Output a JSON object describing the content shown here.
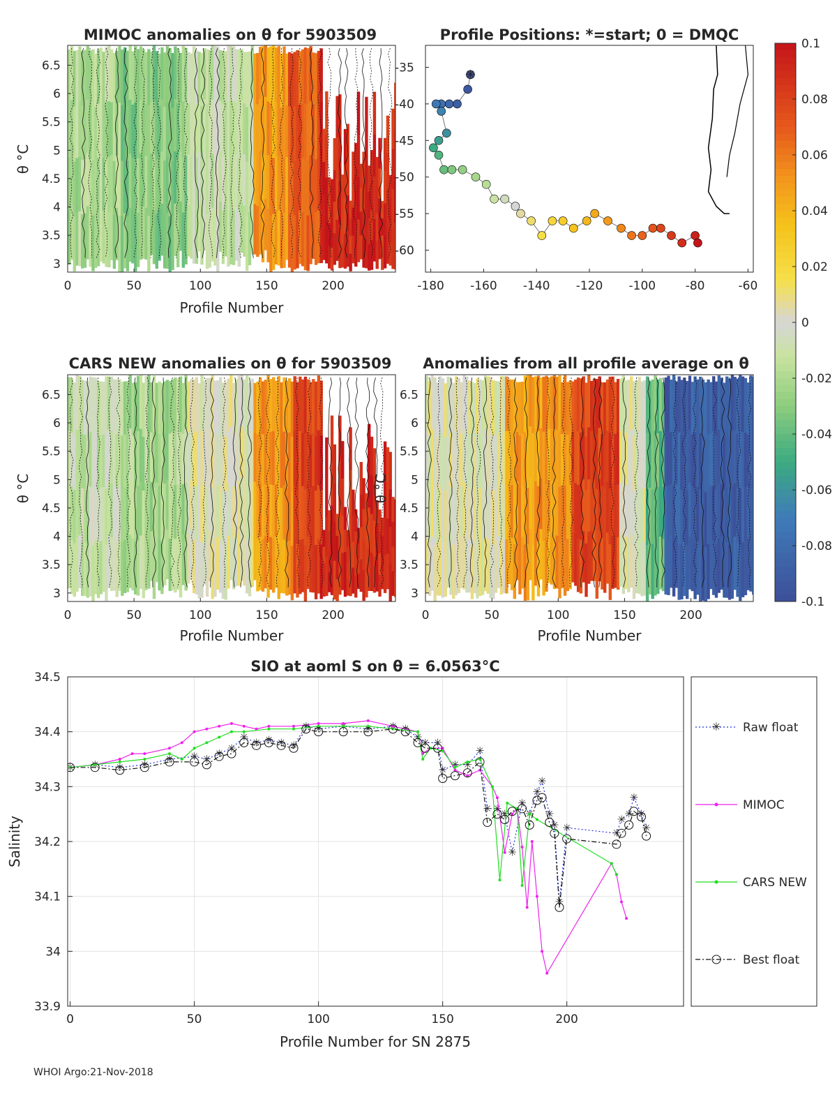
{
  "panels": {
    "mimoc": {
      "title": "MIMOC anomalies on θ  for 5903509",
      "xlabel": "Profile Number",
      "ylabel": "θ °C",
      "xticks": [
        "0",
        "50",
        "100",
        "150",
        "200"
      ],
      "yticks": [
        "6.5",
        "6",
        "5.5",
        "5",
        "4.5",
        "4",
        "3.5",
        "3"
      ]
    },
    "positions": {
      "title": "Profile Positions: *=start; 0 = DMQC",
      "xticks": [
        "-180",
        "-160",
        "-140",
        "-120",
        "-100",
        "-80",
        "-60"
      ],
      "yticks": [
        "-35",
        "-40",
        "-45",
        "-50",
        "-55",
        "-60"
      ]
    },
    "cars": {
      "title": "CARS NEW anomalies on θ for 5903509",
      "xlabel": "Profile Number",
      "ylabel": "θ °C",
      "xticks": [
        "0",
        "50",
        "100",
        "150",
        "200"
      ],
      "yticks": [
        "6.5",
        "6",
        "5.5",
        "5",
        "4.5",
        "4",
        "3.5",
        "3"
      ]
    },
    "allavg": {
      "title": "Anomalies from all profile average on θ",
      "xlabel": "Profile Number",
      "ylabel": "θ °C",
      "xticks": [
        "0",
        "50",
        "100",
        "150",
        "200"
      ],
      "yticks": [
        "6.5",
        "6",
        "5.5",
        "5",
        "4.5",
        "4",
        "3.5",
        "3"
      ]
    }
  },
  "colorbar": {
    "ticks": [
      "0.1",
      "0.08",
      "0.06",
      "0.04",
      "0.02",
      "0",
      "-0.02",
      "-0.04",
      "-0.06",
      "-0.08",
      "-0.1"
    ],
    "colors": [
      "#cc1a1a",
      "#e8581c",
      "#f39a1c",
      "#f6d31d",
      "#d8d8d8",
      "#a8d98a",
      "#3cab80",
      "#3f5a9c"
    ]
  },
  "bottom": {
    "title": "SIO at aoml S on θ = 6.0563°C",
    "xlabel": "Profile Number for SN 2875",
    "ylabel": "Salinity",
    "legend": [
      "Raw float",
      "MIMOC",
      "CARS NEW",
      "Best float"
    ]
  },
  "chart_data": [
    {
      "type": "heatmap",
      "title": "MIMOC anomalies on θ  for 5903509",
      "xlabel": "Profile Number",
      "ylabel": "θ °C",
      "xlim": [
        0,
        247
      ],
      "ylim": [
        2.85,
        6.85
      ],
      "color_range": [
        -0.1,
        0.1
      ],
      "segments": [
        {
          "x": [
            0,
            40
          ],
          "anomaly": -0.02
        },
        {
          "x": [
            40,
            90
          ],
          "anomaly": -0.03
        },
        {
          "x": [
            90,
            140
          ],
          "anomaly": -0.01
        },
        {
          "x": [
            140,
            165
          ],
          "anomaly": 0.05
        },
        {
          "x": [
            165,
            190
          ],
          "anomaly": 0.07
        },
        {
          "x": [
            190,
            247
          ],
          "anomaly": 0.09
        }
      ]
    },
    {
      "type": "scatter",
      "title": "Profile Positions: *=start; 0 = DMQC",
      "xlim": [
        -182,
        -58
      ],
      "ylim": [
        -63,
        -32
      ],
      "x": [
        -165,
        -166,
        -170,
        -173,
        -176,
        -178,
        -176,
        -174,
        -177,
        -179,
        -177,
        -175,
        -172,
        -168,
        -163,
        -159,
        -156,
        -152,
        -148,
        -146,
        -142,
        -138,
        -134,
        -130,
        -126,
        -121,
        -118,
        -113,
        -108,
        -104,
        -100,
        -96,
        -93,
        -89,
        -85,
        -80,
        -79
      ],
      "y": [
        -36,
        -38,
        -40,
        -40,
        -40,
        -40,
        -41,
        -44,
        -45,
        -46,
        -47,
        -49,
        -49,
        -49,
        -50,
        -51,
        -53,
        -53,
        -54,
        -55,
        -56,
        -58,
        -56,
        -56,
        -57,
        -56,
        -55,
        -56,
        -57,
        -58,
        -58,
        -57,
        -57,
        -58,
        -59,
        -58,
        -59
      ],
      "color_by": "profile number"
    },
    {
      "type": "heatmap",
      "title": "CARS NEW anomalies on θ for 5903509",
      "xlabel": "Profile Number",
      "ylabel": "θ °C",
      "xlim": [
        0,
        247
      ],
      "ylim": [
        2.85,
        6.85
      ],
      "color_range": [
        -0.1,
        0.1
      ],
      "segments": [
        {
          "x": [
            0,
            40
          ],
          "anomaly": -0.01
        },
        {
          "x": [
            40,
            90
          ],
          "anomaly": -0.02
        },
        {
          "x": [
            90,
            140
          ],
          "anomaly": 0.0
        },
        {
          "x": [
            140,
            170
          ],
          "anomaly": 0.05
        },
        {
          "x": [
            170,
            190
          ],
          "anomaly": 0.08
        },
        {
          "x": [
            190,
            247
          ],
          "anomaly": 0.09
        }
      ]
    },
    {
      "type": "heatmap",
      "title": "Anomalies from all profile average on θ",
      "xlabel": "Profile Number",
      "ylabel": "θ °C",
      "xlim": [
        0,
        247
      ],
      "ylim": [
        2.85,
        6.85
      ],
      "color_range": [
        -0.1,
        0.1
      ],
      "segments": [
        {
          "x": [
            0,
            60
          ],
          "anomaly": 0.0
        },
        {
          "x": [
            60,
            110
          ],
          "anomaly": 0.05
        },
        {
          "x": [
            110,
            145
          ],
          "anomaly": 0.08
        },
        {
          "x": [
            145,
            165
          ],
          "anomaly": 0.0
        },
        {
          "x": [
            165,
            180
          ],
          "anomaly": -0.04
        },
        {
          "x": [
            180,
            247
          ],
          "anomaly": -0.09
        }
      ]
    },
    {
      "type": "line",
      "title": "SIO at aoml S on θ = 6.0563°C",
      "xlabel": "Profile Number for SN 2875",
      "ylabel": "Salinity",
      "xlim": [
        -1,
        247
      ],
      "ylim": [
        33.9,
        34.5
      ],
      "xticks": [
        0,
        50,
        100,
        150,
        200
      ],
      "yticks": [
        33.9,
        34.0,
        34.1,
        34.2,
        34.3,
        34.4,
        34.5
      ],
      "series": [
        {
          "name": "Raw float",
          "x": [
            0,
            10,
            20,
            30,
            40,
            50,
            55,
            60,
            65,
            70,
            75,
            80,
            85,
            90,
            95,
            100,
            110,
            120,
            130,
            135,
            140,
            143,
            148,
            150,
            155,
            160,
            165,
            168,
            172,
            175,
            178,
            182,
            185,
            188,
            190,
            193,
            195,
            197,
            200,
            220,
            222,
            225,
            227,
            230,
            232
          ],
          "y": [
            34.335,
            34.34,
            34.335,
            34.34,
            34.35,
            34.355,
            34.35,
            34.36,
            34.37,
            34.39,
            34.38,
            34.385,
            34.38,
            34.375,
            34.41,
            34.405,
            34.41,
            34.405,
            34.41,
            34.405,
            34.39,
            34.38,
            34.38,
            34.33,
            34.34,
            34.34,
            34.365,
            34.26,
            34.26,
            34.25,
            34.18,
            34.27,
            34.25,
            34.29,
            34.31,
            34.25,
            34.23,
            34.09,
            34.225,
            34.215,
            34.24,
            34.25,
            34.28,
            34.25,
            34.225
          ]
        },
        {
          "name": "MIMOC",
          "x": [
            0,
            10,
            20,
            25,
            30,
            40,
            45,
            50,
            55,
            60,
            65,
            70,
            75,
            80,
            90,
            100,
            110,
            120,
            130,
            140,
            142,
            145,
            150,
            155,
            160,
            165,
            170,
            172,
            175,
            178,
            180,
            182,
            184,
            186,
            188,
            190,
            192,
            218,
            220,
            222,
            224
          ],
          "y": [
            34.335,
            34.34,
            34.35,
            34.36,
            34.36,
            34.37,
            34.38,
            34.4,
            34.405,
            34.41,
            34.415,
            34.41,
            34.405,
            34.41,
            34.41,
            34.415,
            34.415,
            34.42,
            34.41,
            34.4,
            34.36,
            34.37,
            34.37,
            34.33,
            34.32,
            34.33,
            34.3,
            34.28,
            34.18,
            34.25,
            34.26,
            34.19,
            34.08,
            34.2,
            34.1,
            34.0,
            33.96,
            34.16,
            34.14,
            34.09,
            34.06
          ]
        },
        {
          "name": "CARS NEW",
          "x": [
            0,
            10,
            20,
            30,
            40,
            45,
            50,
            55,
            60,
            65,
            70,
            80,
            90,
            100,
            110,
            120,
            130,
            140,
            142,
            145,
            150,
            155,
            160,
            165,
            170,
            173,
            176,
            180,
            182,
            185,
            188,
            218,
            220
          ],
          "y": [
            34.335,
            34.34,
            34.345,
            34.35,
            34.36,
            34.35,
            34.37,
            34.38,
            34.39,
            34.4,
            34.4,
            34.405,
            34.405,
            34.41,
            34.41,
            34.41,
            34.405,
            34.4,
            34.35,
            34.37,
            34.365,
            34.335,
            34.345,
            34.35,
            34.3,
            34.13,
            34.27,
            34.26,
            34.12,
            34.25,
            34.24,
            34.16,
            34.14
          ]
        },
        {
          "name": "Best float",
          "x": [
            0,
            10,
            20,
            30,
            40,
            50,
            55,
            60,
            65,
            70,
            75,
            80,
            85,
            90,
            95,
            100,
            110,
            120,
            130,
            135,
            140,
            143,
            148,
            150,
            155,
            160,
            165,
            168,
            172,
            175,
            178,
            182,
            185,
            188,
            190,
            193,
            195,
            197,
            200,
            220,
            222,
            225,
            227,
            230,
            232
          ],
          "y": [
            34.335,
            34.335,
            34.33,
            34.335,
            34.345,
            34.345,
            34.34,
            34.355,
            34.36,
            34.38,
            34.375,
            34.38,
            34.375,
            34.37,
            34.405,
            34.4,
            34.4,
            34.4,
            34.405,
            34.4,
            34.38,
            34.37,
            34.37,
            34.315,
            34.32,
            34.325,
            34.345,
            34.235,
            34.25,
            34.24,
            34.255,
            34.26,
            34.23,
            34.275,
            34.28,
            34.235,
            34.215,
            34.08,
            34.205,
            34.195,
            34.215,
            34.23,
            34.255,
            34.245,
            34.21
          ]
        }
      ]
    }
  ],
  "footer": "WHOI Argo:21-Nov-2018"
}
